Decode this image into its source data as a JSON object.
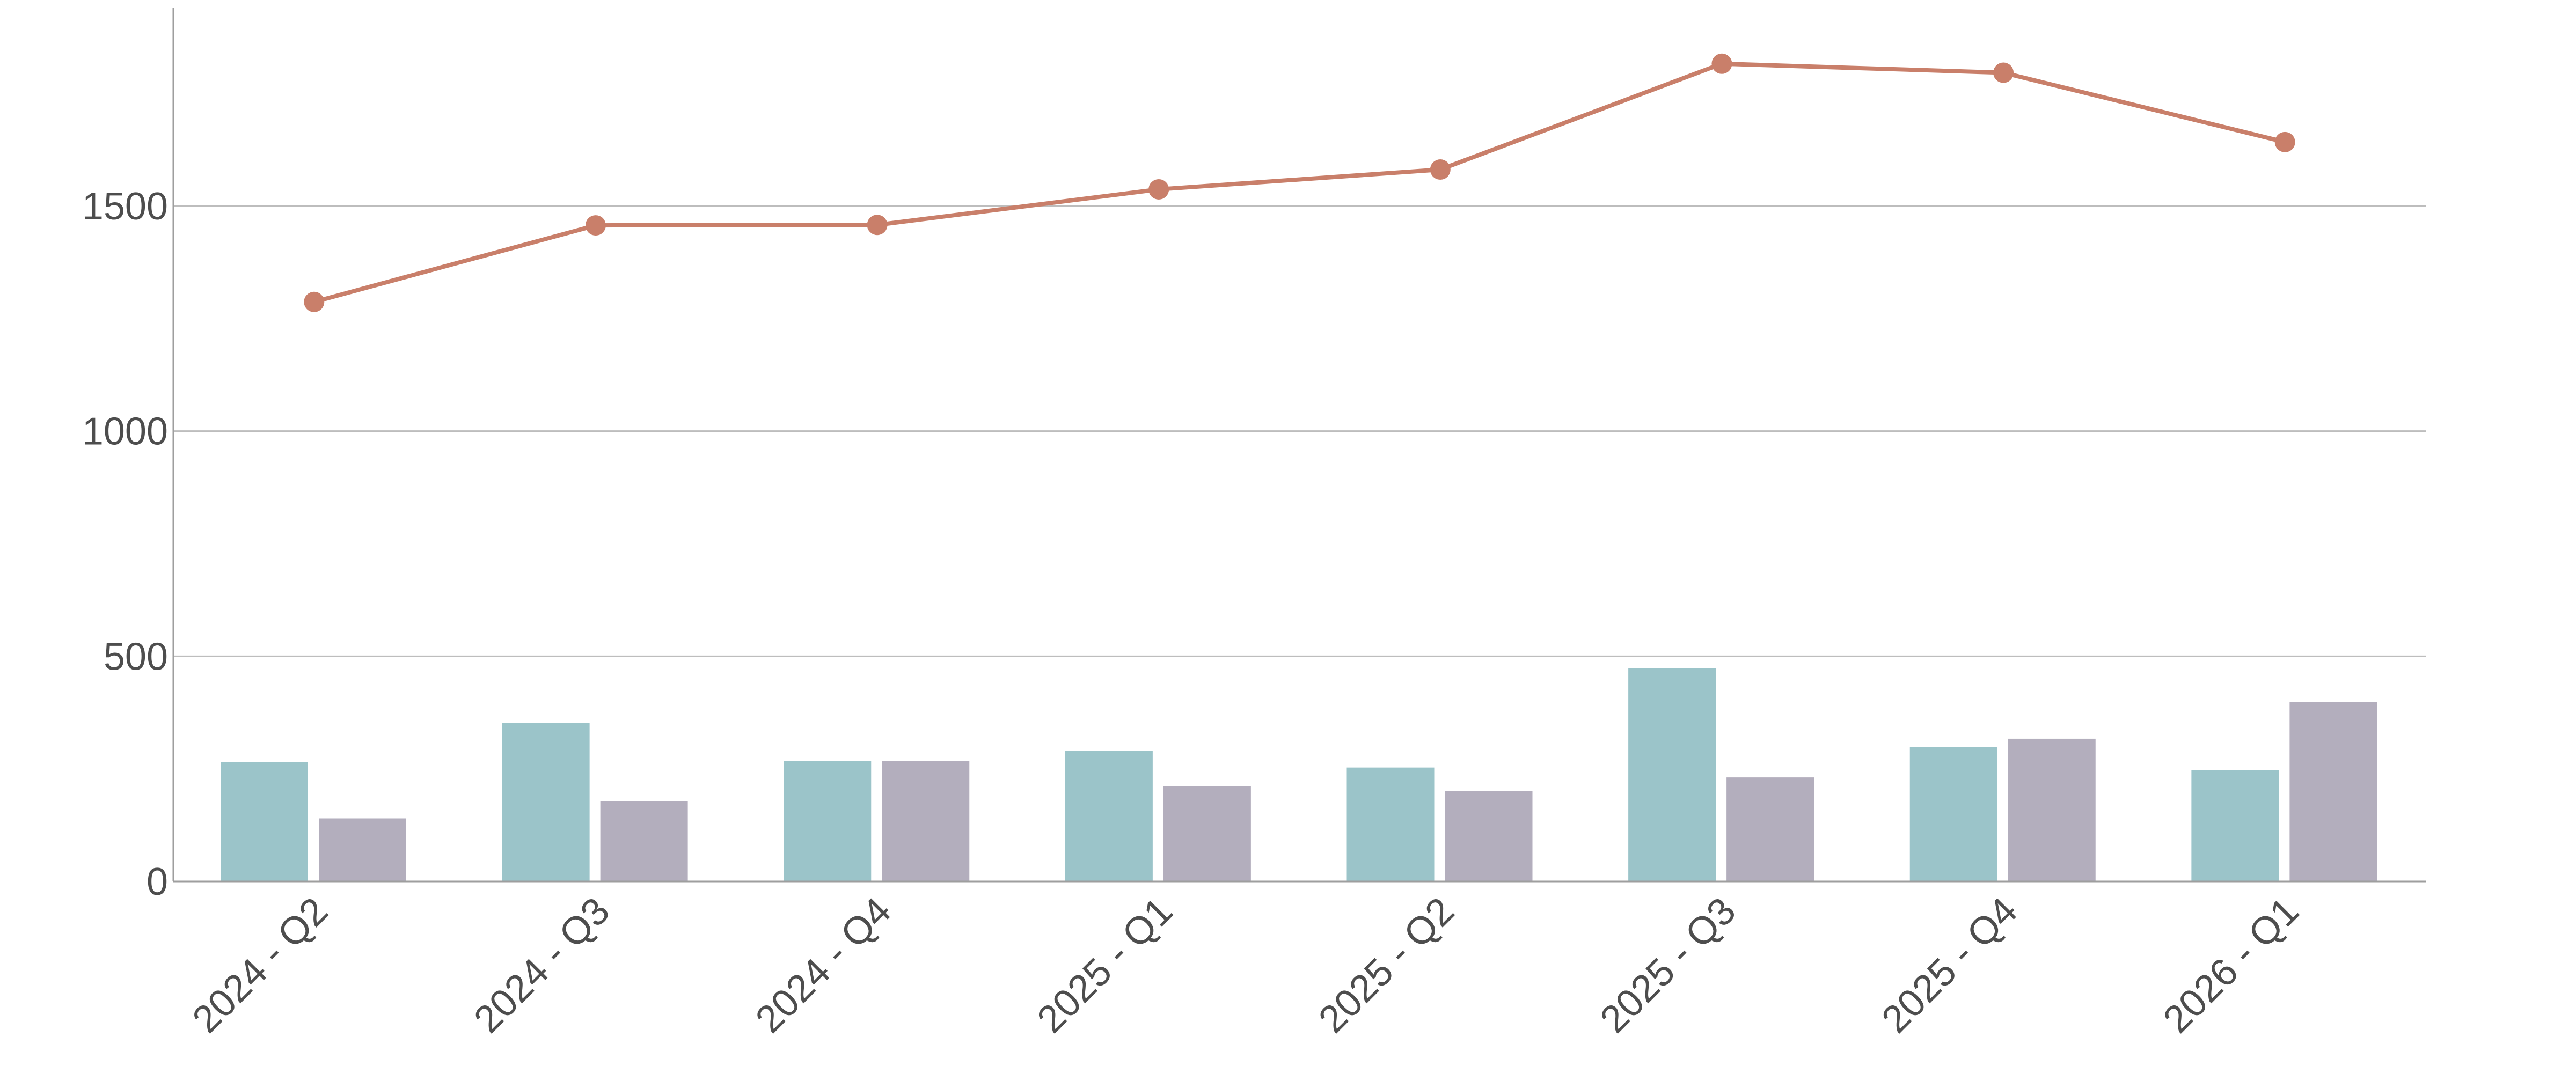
{
  "chart_data": {
    "type": "bar",
    "categories": [
      "2024 - Q2",
      "2024 - Q3",
      "2024 - Q4",
      "2025 - Q1",
      "2025 - Q2",
      "2025 - Q3",
      "2025 - Q4",
      "2026 - Q1"
    ],
    "series": [
      {
        "kind": "bar",
        "color": "#9bc4c9",
        "values": [
          265,
          352,
          268,
          290,
          253,
          473,
          299,
          247
        ]
      },
      {
        "kind": "bar",
        "color": "#b3aebd",
        "values": [
          140,
          178,
          268,
          212,
          201,
          231,
          317,
          398
        ]
      },
      {
        "kind": "line",
        "color": "#c97f6a",
        "values": [
          1287,
          1457,
          1458,
          1537,
          1581,
          1816,
          1796,
          1642
        ]
      }
    ],
    "yticks": [
      0,
      500,
      1000,
      1500
    ],
    "ylim": [
      0,
      1900
    ],
    "grid": "horizontal",
    "title": "",
    "xlabel": "",
    "ylabel": ""
  }
}
